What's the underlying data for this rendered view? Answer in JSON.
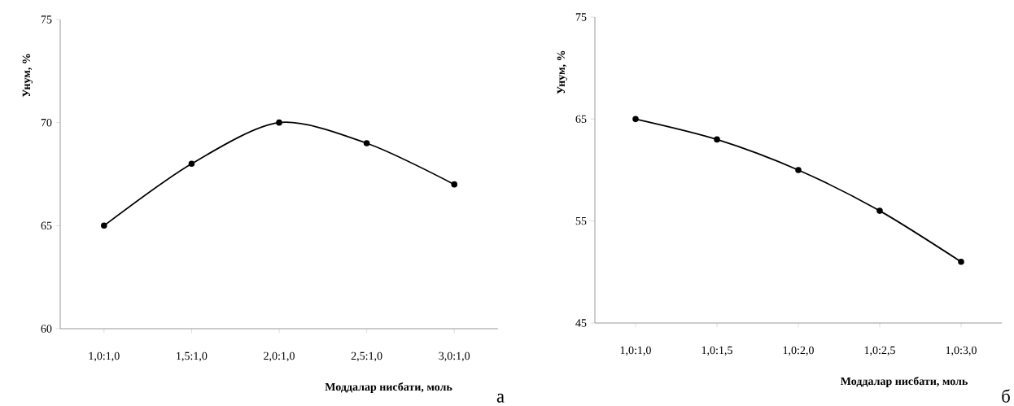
{
  "chart_data": [
    {
      "type": "line",
      "xlabel": "Моддалар нисбати, моль",
      "ylabel": "Унум, %",
      "categories": [
        "1,0:1,0",
        "1,5:1,0",
        "2,0:1,0",
        "2,5:1,0",
        "3,0:1,0"
      ],
      "series": [
        {
          "color": "#000000",
          "values": [
            65,
            68,
            70,
            69,
            67
          ]
        }
      ],
      "ylim": [
        60,
        75
      ],
      "yticks": [
        60,
        65,
        70,
        75
      ],
      "marker": "circle",
      "line_style": "solid",
      "annotations": [
        "а"
      ]
    },
    {
      "type": "line",
      "xlabel": "Моддалар нисбати, моль",
      "ylabel": "Унум, %",
      "categories": [
        "1,0:1,0",
        "1,0:1,5",
        "1,0:2,0",
        "1,0:2,5",
        "1,0:3,0"
      ],
      "series": [
        {
          "color": "#000000",
          "values": [
            65,
            63,
            60,
            56,
            51
          ]
        }
      ],
      "ylim": [
        45,
        75
      ],
      "yticks": [
        45,
        55,
        65,
        75
      ],
      "marker": "circle",
      "line_style": "solid",
      "annotations": [
        "б"
      ]
    }
  ]
}
